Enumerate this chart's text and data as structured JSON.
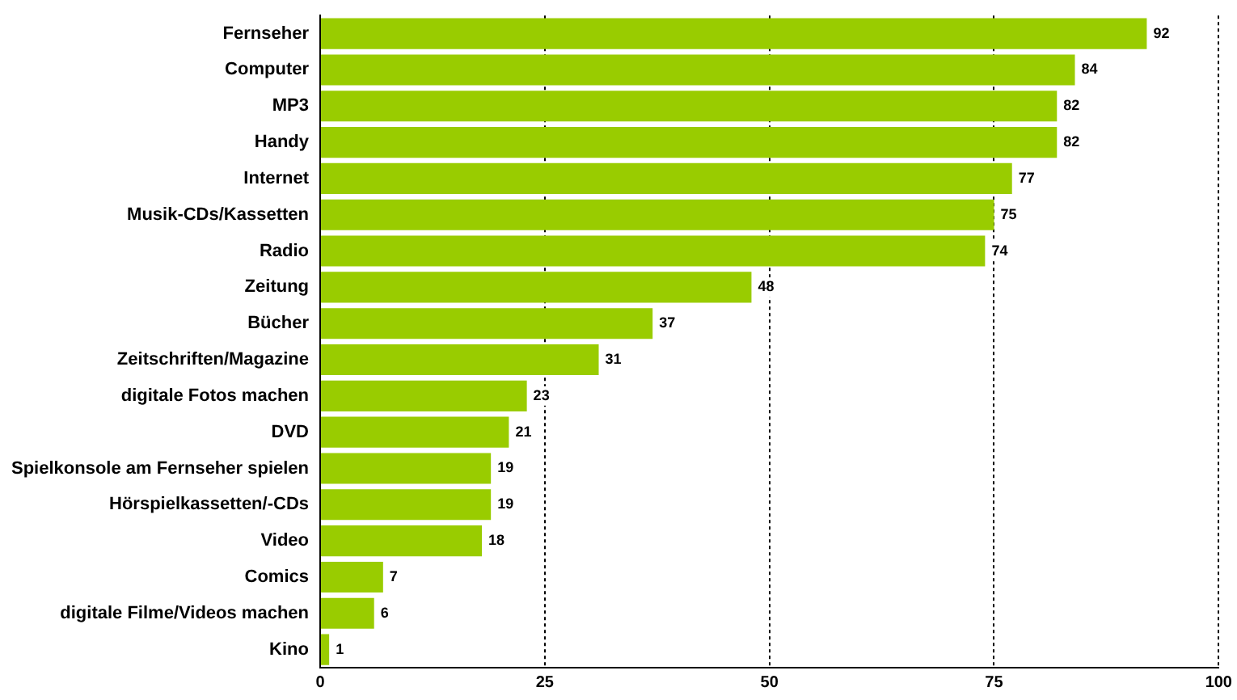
{
  "chart_data": {
    "type": "bar",
    "orientation": "horizontal",
    "categories": [
      "Fernseher",
      "Computer",
      "MP3",
      "Handy",
      "Internet",
      "Musik-CDs/Kassetten",
      "Radio",
      "Zeitung",
      "Bücher",
      "Zeitschriften/Magazine",
      "digitale Fotos machen",
      "DVD",
      "Spielkonsole am Fernseher spielen",
      "Hörspielkassetten/-CDs",
      "Video",
      "Comics",
      "digitale Filme/Videos machen",
      "Kino"
    ],
    "values": [
      92,
      84,
      82,
      82,
      77,
      75,
      74,
      48,
      37,
      31,
      23,
      21,
      19,
      19,
      18,
      7,
      6,
      1
    ],
    "color": "#99cc00",
    "xlim": [
      0,
      100
    ],
    "xticks": [
      0,
      25,
      50,
      75,
      100
    ],
    "grid": "x",
    "data_labels": true
  }
}
